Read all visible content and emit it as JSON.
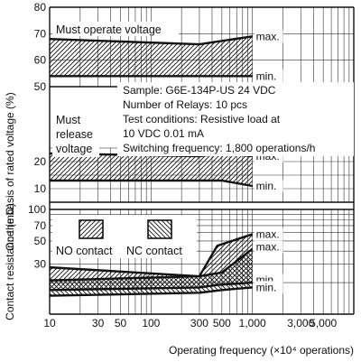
{
  "chart_data": [
    {
      "type": "area",
      "title": "",
      "ylabel": "On the basis of rated voltage (%)",
      "ylim_upper": [
        50,
        80
      ],
      "ylim_lower": [
        5,
        25
      ],
      "y_ticks_upper": [
        50,
        60,
        70,
        80
      ],
      "y_ticks_lower": [
        10,
        20
      ],
      "x_scale": "log",
      "xlim": [
        10,
        10000
      ],
      "grid": true,
      "series": [
        {
          "name": "Must operate voltage",
          "x": [
            10,
            300,
            1000
          ],
          "max": [
            68,
            66,
            69
          ],
          "min": [
            54,
            54,
            54
          ]
        },
        {
          "name": "Must release voltage",
          "x": [
            10,
            300,
            500,
            1000
          ],
          "max": [
            23,
            22,
            23,
            22
          ],
          "min": [
            13,
            13,
            13,
            11
          ]
        }
      ],
      "annotations": {
        "max_label": "max.",
        "min_label": "min.",
        "release_label_lines": [
          "Must",
          "release",
          "voltage"
        ],
        "sample_text": [
          "Sample: G6E-134P-US  24 VDC",
          "Number of Relays: 10 pcs",
          "Test conditions: Resistive load at",
          "10 VDC 0.01 mA",
          "Switching frequency: 1,800 operations/h"
        ]
      }
    },
    {
      "type": "area",
      "title": "",
      "ylabel": "Contact resistance (mΩ)",
      "xlabel": "Operating frequency (×10⁴ operations)",
      "y_scale": "log",
      "ylim": [
        10,
        100
      ],
      "y_ticks": [
        "100",
        "70",
        "50",
        "30"
      ],
      "x_scale": "log",
      "xlim": [
        10,
        10000
      ],
      "x_ticks": [
        "10",
        "30",
        "50",
        "100",
        "300",
        "500",
        "1,000",
        "3,000",
        "5,000"
      ],
      "grid": true,
      "legend": {
        "position": "top-left",
        "entries": [
          "NO contact",
          "NC contact"
        ]
      },
      "series": [
        {
          "name": "NO contact",
          "x": [
            10,
            300,
            450,
            1000
          ],
          "max": [
            28,
            23,
            45,
            58
          ],
          "min": [
            17,
            18,
            19,
            20
          ]
        },
        {
          "name": "NC contact",
          "x": [
            10,
            300,
            500,
            1000
          ],
          "max": [
            21,
            23,
            25,
            42
          ],
          "min": [
            15,
            16,
            17,
            18
          ]
        }
      ],
      "annotations": {
        "max_label": "max.",
        "min_label": "min."
      }
    }
  ]
}
